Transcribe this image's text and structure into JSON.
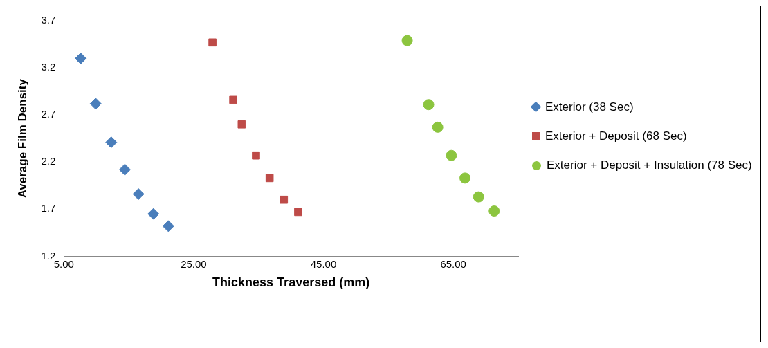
{
  "chart_data": {
    "type": "scatter",
    "xlabel": "Thickness Traversed (mm)",
    "ylabel": "Average Film Density",
    "xlim": [
      5,
      75
    ],
    "xticks": [
      {
        "value": 5,
        "label": "5.00"
      },
      {
        "value": 25,
        "label": "25.00"
      },
      {
        "value": 45,
        "label": "45.00"
      },
      {
        "value": 65,
        "label": "65.00"
      }
    ],
    "ylim": [
      1.2,
      3.7
    ],
    "yticks": [
      1.2,
      1.7,
      2.2,
      2.7,
      3.2,
      3.7
    ],
    "grid": false,
    "legend": "right",
    "series": [
      {
        "name": "Exterior (38 Sec)",
        "color": "#4a7ebb",
        "marker": "diamond",
        "x": [
          7.6,
          9.9,
          12.3,
          14.4,
          16.5,
          18.8,
          21.1
        ],
        "values": [
          3.3,
          2.82,
          2.41,
          2.12,
          1.86,
          1.65,
          1.52
        ]
      },
      {
        "name": "Exterior + Deposit (68 Sec)",
        "color": "#be4b48",
        "marker": "square",
        "x": [
          27.9,
          31.1,
          32.4,
          34.6,
          36.7,
          38.9,
          41.1
        ],
        "values": [
          3.47,
          2.86,
          2.6,
          2.27,
          2.03,
          1.8,
          1.67
        ]
      },
      {
        "name": "Exterior + Deposit + Insulation (78 Sec)",
        "color": "#8cc53f",
        "marker": "circle",
        "x": [
          57.9,
          61.2,
          62.6,
          64.7,
          66.8,
          68.9,
          71.3
        ],
        "values": [
          3.49,
          2.81,
          2.57,
          2.27,
          2.03,
          1.83,
          1.68
        ]
      }
    ]
  }
}
